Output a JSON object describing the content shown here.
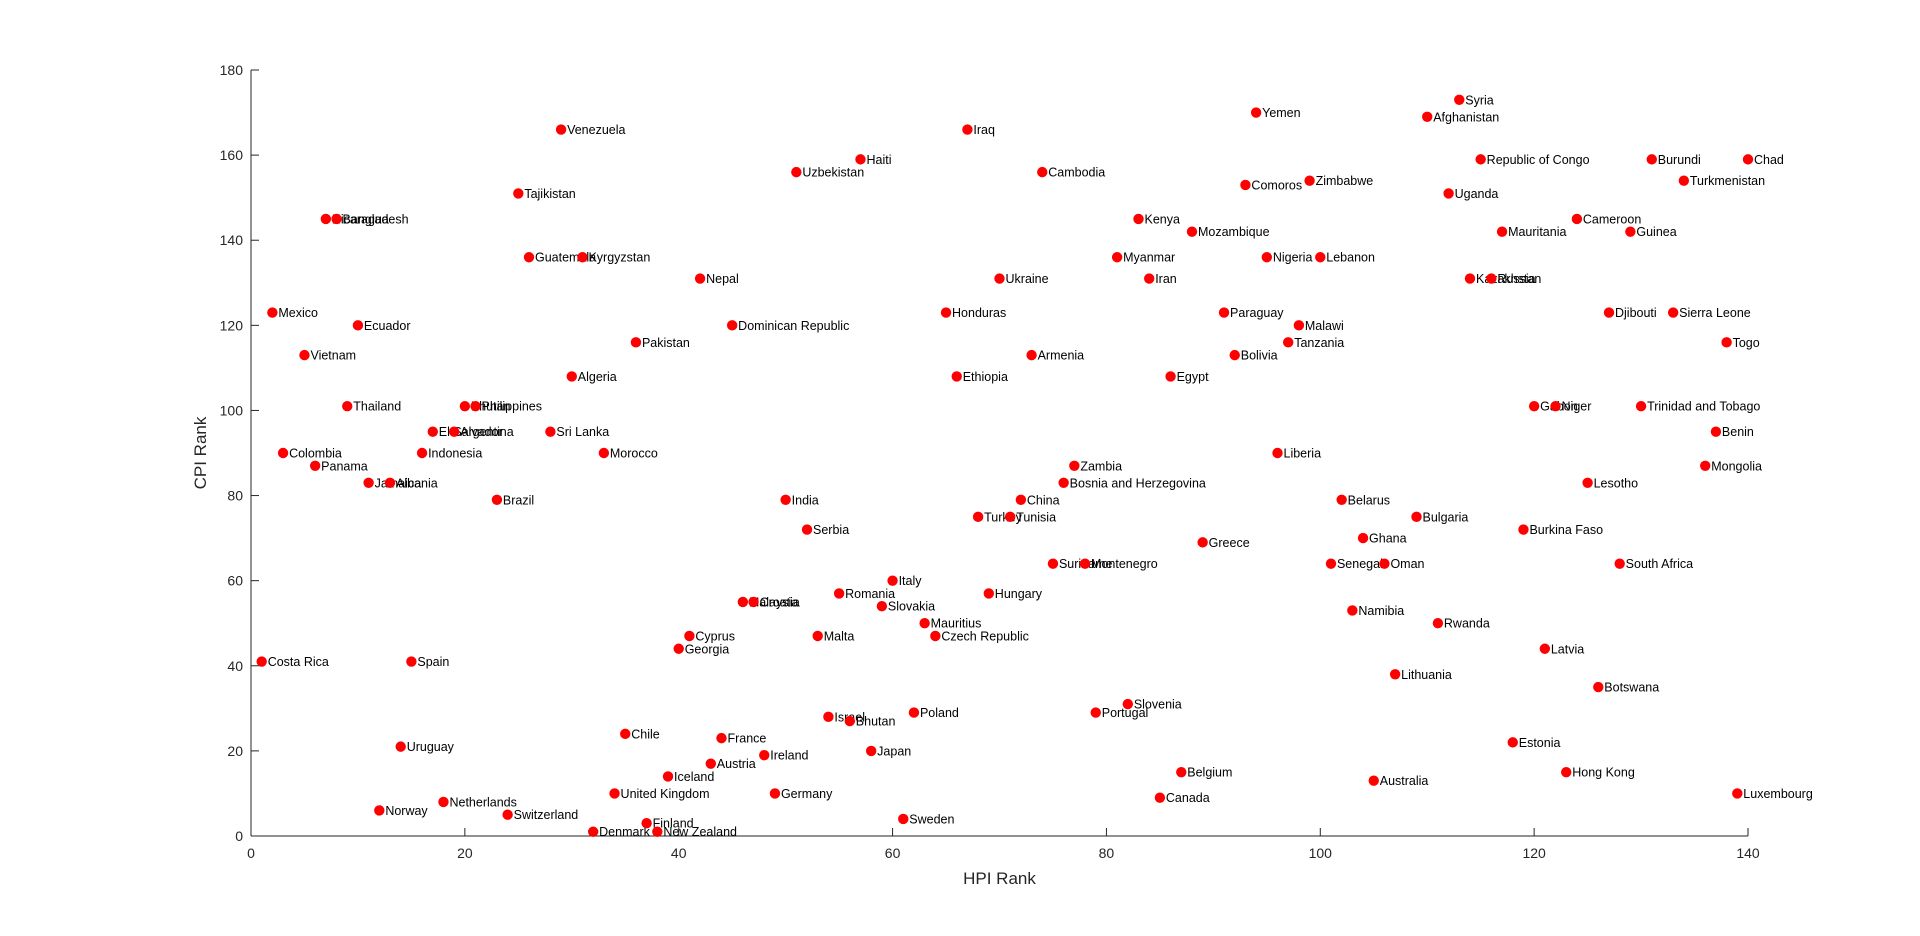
{
  "chart_data": {
    "type": "scatter",
    "xlabel": "HPI Rank",
    "ylabel": "CPI Rank",
    "xlim": [
      0,
      140
    ],
    "ylim": [
      0,
      180
    ],
    "xticks": [
      "0",
      "20",
      "40",
      "60",
      "80",
      "100",
      "120",
      "140"
    ],
    "yticks": [
      "0",
      "20",
      "40",
      "60",
      "80",
      "100",
      "120",
      "140",
      "160",
      "180"
    ],
    "grid": false,
    "legend": "none",
    "marker_color": "#ff0000",
    "points": [
      {
        "label": "Costa Rica",
        "x": 1,
        "y": 41
      },
      {
        "label": "Mexico",
        "x": 2,
        "y": 123
      },
      {
        "label": "Colombia",
        "x": 3,
        "y": 90
      },
      {
        "label": "Vietnam",
        "x": 5,
        "y": 113
      },
      {
        "label": "Panama",
        "x": 6,
        "y": 87
      },
      {
        "label": "Nicaragua",
        "x": 7,
        "y": 145
      },
      {
        "label": "Bangladesh",
        "x": 8,
        "y": 145
      },
      {
        "label": "Thailand",
        "x": 9,
        "y": 101
      },
      {
        "label": "Ecuador",
        "x": 10,
        "y": 120
      },
      {
        "label": "Jamaica",
        "x": 11,
        "y": 83
      },
      {
        "label": "Norway",
        "x": 12,
        "y": 6
      },
      {
        "label": "Albania",
        "x": 13,
        "y": 83
      },
      {
        "label": "Uruguay",
        "x": 14,
        "y": 21
      },
      {
        "label": "Spain",
        "x": 15,
        "y": 41
      },
      {
        "label": "Indonesia",
        "x": 16,
        "y": 90
      },
      {
        "label": "El Salvador",
        "x": 17,
        "y": 95
      },
      {
        "label": "Netherlands",
        "x": 18,
        "y": 8
      },
      {
        "label": "Argentina",
        "x": 19,
        "y": 95
      },
      {
        "label": "Bhutan",
        "x": 20,
        "y": 101
      },
      {
        "label": "Philippines",
        "x": 21,
        "y": 101
      },
      {
        "label": "Brazil",
        "x": 23,
        "y": 79
      },
      {
        "label": "Switzerland",
        "x": 24,
        "y": 5
      },
      {
        "label": "Tajikistan",
        "x": 25,
        "y": 151
      },
      {
        "label": "Guatemala",
        "x": 26,
        "y": 136
      },
      {
        "label": "Sri Lanka",
        "x": 28,
        "y": 95
      },
      {
        "label": "Venezuela",
        "x": 29,
        "y": 166
      },
      {
        "label": "Algeria",
        "x": 30,
        "y": 108
      },
      {
        "label": "Kyrgyzstan",
        "x": 31,
        "y": 136
      },
      {
        "label": "Denmark",
        "x": 32,
        "y": 1
      },
      {
        "label": "Morocco",
        "x": 33,
        "y": 90
      },
      {
        "label": "United Kingdom",
        "x": 34,
        "y": 10
      },
      {
        "label": "Chile",
        "x": 35,
        "y": 24
      },
      {
        "label": "Pakistan",
        "x": 36,
        "y": 116
      },
      {
        "label": "Finland",
        "x": 37,
        "y": 3
      },
      {
        "label": "New Zealand",
        "x": 38,
        "y": 1
      },
      {
        "label": "Iceland",
        "x": 39,
        "y": 14
      },
      {
        "label": "Georgia",
        "x": 40,
        "y": 44
      },
      {
        "label": "Cyprus",
        "x": 41,
        "y": 47
      },
      {
        "label": "Nepal",
        "x": 42,
        "y": 131
      },
      {
        "label": "Austria",
        "x": 43,
        "y": 17
      },
      {
        "label": "France",
        "x": 44,
        "y": 23
      },
      {
        "label": "Dominican Republic",
        "x": 45,
        "y": 120
      },
      {
        "label": "Malaysia",
        "x": 46,
        "y": 55
      },
      {
        "label": "Croatia",
        "x": 47,
        "y": 55
      },
      {
        "label": "Ireland",
        "x": 48,
        "y": 19
      },
      {
        "label": "Germany",
        "x": 49,
        "y": 10
      },
      {
        "label": "India",
        "x": 50,
        "y": 79
      },
      {
        "label": "Uzbekistan",
        "x": 51,
        "y": 156
      },
      {
        "label": "Serbia",
        "x": 52,
        "y": 72
      },
      {
        "label": "Malta",
        "x": 53,
        "y": 47
      },
      {
        "label": "Israel",
        "x": 54,
        "y": 28
      },
      {
        "label": "Romania",
        "x": 55,
        "y": 57
      },
      {
        "label": "Bhutan",
        "x": 56,
        "y": 27
      },
      {
        "label": "Haiti",
        "x": 57,
        "y": 159
      },
      {
        "label": "Japan",
        "x": 58,
        "y": 20
      },
      {
        "label": "Slovakia",
        "x": 59,
        "y": 54
      },
      {
        "label": "Italy",
        "x": 60,
        "y": 60
      },
      {
        "label": "Sweden",
        "x": 61,
        "y": 4
      },
      {
        "label": "Poland",
        "x": 62,
        "y": 29
      },
      {
        "label": "Mauritius",
        "x": 63,
        "y": 50
      },
      {
        "label": "Czech Republic",
        "x": 64,
        "y": 47
      },
      {
        "label": "Honduras",
        "x": 65,
        "y": 123
      },
      {
        "label": "Ethiopia",
        "x": 66,
        "y": 108
      },
      {
        "label": "Iraq",
        "x": 67,
        "y": 166
      },
      {
        "label": "Turkey",
        "x": 68,
        "y": 75
      },
      {
        "label": "Hungary",
        "x": 69,
        "y": 57
      },
      {
        "label": "Ukraine",
        "x": 70,
        "y": 131
      },
      {
        "label": "Tunisia",
        "x": 71,
        "y": 75
      },
      {
        "label": "China",
        "x": 72,
        "y": 79
      },
      {
        "label": "Armenia",
        "x": 73,
        "y": 113
      },
      {
        "label": "Cambodia",
        "x": 74,
        "y": 156
      },
      {
        "label": "Suriname",
        "x": 75,
        "y": 64
      },
      {
        "label": "Bosnia and Herzegovina",
        "x": 76,
        "y": 83
      },
      {
        "label": "Zambia",
        "x": 77,
        "y": 87
      },
      {
        "label": "Montenegro",
        "x": 78,
        "y": 64
      },
      {
        "label": "Portugal",
        "x": 79,
        "y": 29
      },
      {
        "label": "Myanmar",
        "x": 81,
        "y": 136
      },
      {
        "label": "Slovenia",
        "x": 82,
        "y": 31
      },
      {
        "label": "Kenya",
        "x": 83,
        "y": 145
      },
      {
        "label": "Iran",
        "x": 84,
        "y": 131
      },
      {
        "label": "Canada",
        "x": 85,
        "y": 9
      },
      {
        "label": "Egypt",
        "x": 86,
        "y": 108
      },
      {
        "label": "Belgium",
        "x": 87,
        "y": 15
      },
      {
        "label": "Mozambique",
        "x": 88,
        "y": 142
      },
      {
        "label": "Greece",
        "x": 89,
        "y": 69
      },
      {
        "label": "Paraguay",
        "x": 91,
        "y": 123
      },
      {
        "label": "Bolivia",
        "x": 92,
        "y": 113
      },
      {
        "label": "Comoros",
        "x": 93,
        "y": 153
      },
      {
        "label": "Yemen",
        "x": 94,
        "y": 170
      },
      {
        "label": "Nigeria",
        "x": 95,
        "y": 136
      },
      {
        "label": "Liberia",
        "x": 96,
        "y": 90
      },
      {
        "label": "Tanzania",
        "x": 97,
        "y": 116
      },
      {
        "label": "Malawi",
        "x": 98,
        "y": 120
      },
      {
        "label": "Zimbabwe",
        "x": 99,
        "y": 154
      },
      {
        "label": "Lebanon",
        "x": 100,
        "y": 136
      },
      {
        "label": "Senegal",
        "x": 101,
        "y": 64
      },
      {
        "label": "Belarus",
        "x": 102,
        "y": 79
      },
      {
        "label": "Namibia",
        "x": 103,
        "y": 53
      },
      {
        "label": "Ghana",
        "x": 104,
        "y": 70
      },
      {
        "label": "Australia",
        "x": 105,
        "y": 13
      },
      {
        "label": "Oman",
        "x": 106,
        "y": 64
      },
      {
        "label": "Lithuania",
        "x": 107,
        "y": 38
      },
      {
        "label": "Bulgaria",
        "x": 109,
        "y": 75
      },
      {
        "label": "Afghanistan",
        "x": 110,
        "y": 169
      },
      {
        "label": "Rwanda",
        "x": 111,
        "y": 50
      },
      {
        "label": "Uganda",
        "x": 112,
        "y": 151
      },
      {
        "label": "Syria",
        "x": 113,
        "y": 173
      },
      {
        "label": "Kazakhstan",
        "x": 114,
        "y": 131
      },
      {
        "label": "Republic of Congo",
        "x": 115,
        "y": 159
      },
      {
        "label": "Russia",
        "x": 116,
        "y": 131
      },
      {
        "label": "Mauritania",
        "x": 117,
        "y": 142
      },
      {
        "label": "Estonia",
        "x": 118,
        "y": 22
      },
      {
        "label": "Burkina Faso",
        "x": 119,
        "y": 72
      },
      {
        "label": "Gabon",
        "x": 120,
        "y": 101
      },
      {
        "label": "Latvia",
        "x": 121,
        "y": 44
      },
      {
        "label": "Niger",
        "x": 122,
        "y": 101
      },
      {
        "label": "Hong Kong",
        "x": 123,
        "y": 15
      },
      {
        "label": "Cameroon",
        "x": 124,
        "y": 145
      },
      {
        "label": "Lesotho",
        "x": 125,
        "y": 83
      },
      {
        "label": "Botswana",
        "x": 126,
        "y": 35
      },
      {
        "label": "Djibouti",
        "x": 127,
        "y": 123
      },
      {
        "label": "South Africa",
        "x": 128,
        "y": 64
      },
      {
        "label": "Guinea",
        "x": 129,
        "y": 142
      },
      {
        "label": "Trinidad and Tobago",
        "x": 130,
        "y": 101
      },
      {
        "label": "Burundi",
        "x": 131,
        "y": 159
      },
      {
        "label": "Sierra Leone",
        "x": 133,
        "y": 123
      },
      {
        "label": "Turkmenistan",
        "x": 134,
        "y": 154
      },
      {
        "label": "Mongolia",
        "x": 136,
        "y": 87
      },
      {
        "label": "Benin",
        "x": 137,
        "y": 95
      },
      {
        "label": "Togo",
        "x": 138,
        "y": 116
      },
      {
        "label": "Luxembourg",
        "x": 139,
        "y": 10
      },
      {
        "label": "Chad",
        "x": 140,
        "y": 159
      }
    ]
  }
}
